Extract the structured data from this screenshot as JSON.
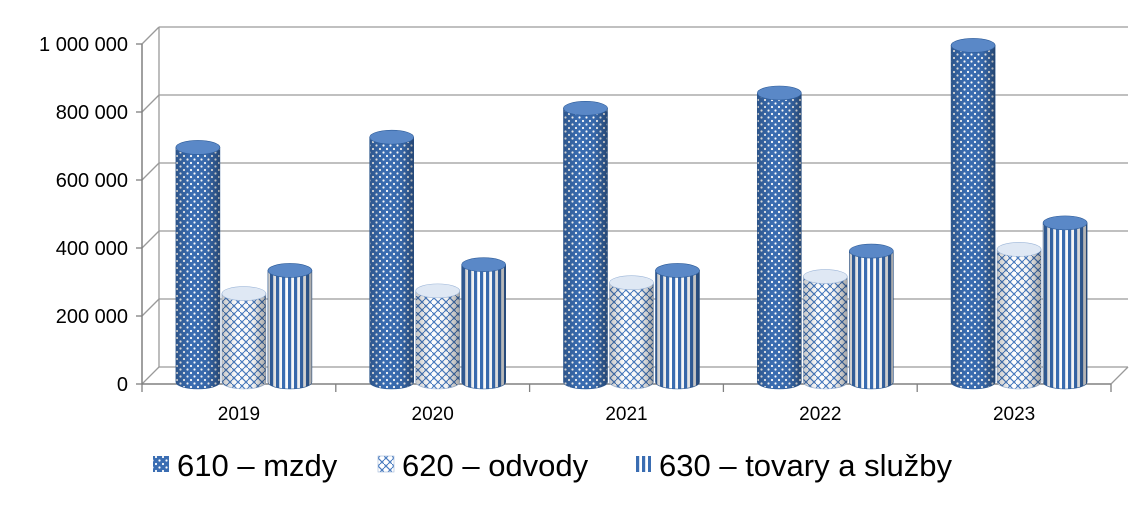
{
  "chart_data": {
    "type": "bar",
    "title": "",
    "xlabel": "",
    "ylabel": "",
    "ylim": [
      0,
      1000000
    ],
    "yticks": [
      0,
      200000,
      400000,
      600000,
      800000,
      1000000
    ],
    "ytick_labels": [
      "0",
      "200 000",
      "400 000",
      "600 000",
      "800 000",
      "1 000 000"
    ],
    "categories": [
      "2019",
      "2020",
      "2021",
      "2022",
      "2023"
    ],
    "grid": true,
    "legend_position": "bottom",
    "series": [
      {
        "name": "610 – mzdy",
        "pattern": "dots",
        "color": "#3f74b8",
        "values": [
          690000,
          720000,
          805000,
          850000,
          990000
        ]
      },
      {
        "name": "620 – odvody",
        "pattern": "weave",
        "color": "#3f74b8",
        "values": [
          260000,
          268000,
          292000,
          310000,
          390000
        ]
      },
      {
        "name": "630 – tovary a služby",
        "pattern": "vertical-stripes",
        "color": "#3f74b8",
        "values": [
          328000,
          345000,
          328000,
          385000,
          468000
        ]
      }
    ]
  }
}
